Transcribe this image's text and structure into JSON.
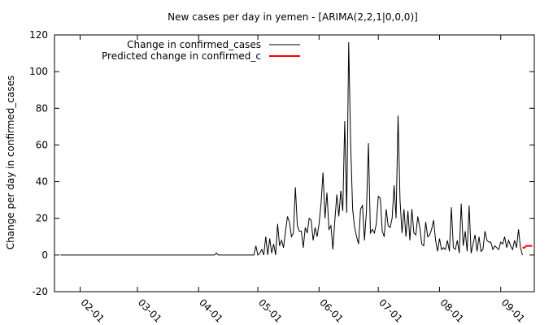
{
  "chart_data": {
    "type": "line",
    "title": "New cases per day in yemen -  [ARIMA(2,2,1|0,0,0)]",
    "xlabel": "",
    "ylabel": "Change per day in confirmed_cases",
    "xlim": [
      "2020-01-19",
      "2020-09-18"
    ],
    "ylim": [
      -20,
      120
    ],
    "yticks": [
      -20,
      0,
      20,
      40,
      60,
      80,
      100,
      120
    ],
    "xticks": [
      {
        "label": "02-01",
        "date": "2020-02-01"
      },
      {
        "label": "03-01",
        "date": "2020-03-01"
      },
      {
        "label": "04-01",
        "date": "2020-04-01"
      },
      {
        "label": "05-01",
        "date": "2020-05-01"
      },
      {
        "label": "06-01",
        "date": "2020-06-01"
      },
      {
        "label": "07-01",
        "date": "2020-07-01"
      },
      {
        "label": "08-01",
        "date": "2020-08-01"
      },
      {
        "label": "09-01",
        "date": "2020-09-01"
      }
    ],
    "grid": false,
    "legend_position": "top-left",
    "series": [
      {
        "name": "Change in confirmed_cases",
        "color": "#000000",
        "points": [
          [
            "2020-01-22",
            0
          ],
          [
            "2020-04-09",
            0
          ],
          [
            "2020-04-10",
            1
          ],
          [
            "2020-04-11",
            0
          ],
          [
            "2020-04-29",
            0
          ],
          [
            "2020-04-30",
            5
          ],
          [
            "2020-05-01",
            0
          ],
          [
            "2020-05-02",
            1
          ],
          [
            "2020-05-03",
            3
          ],
          [
            "2020-05-04",
            0
          ],
          [
            "2020-05-05",
            10
          ],
          [
            "2020-05-06",
            0
          ],
          [
            "2020-05-07",
            9
          ],
          [
            "2020-05-08",
            1
          ],
          [
            "2020-05-09",
            6
          ],
          [
            "2020-05-10",
            0
          ],
          [
            "2020-05-11",
            17
          ],
          [
            "2020-05-12",
            5
          ],
          [
            "2020-05-13",
            8
          ],
          [
            "2020-05-14",
            4
          ],
          [
            "2020-05-15",
            13
          ],
          [
            "2020-05-16",
            21
          ],
          [
            "2020-05-17",
            18
          ],
          [
            "2020-05-18",
            10
          ],
          [
            "2020-05-19",
            12
          ],
          [
            "2020-05-20",
            37
          ],
          [
            "2020-05-21",
            16
          ],
          [
            "2020-05-22",
            13
          ],
          [
            "2020-05-23",
            13
          ],
          [
            "2020-05-24",
            4
          ],
          [
            "2020-05-25",
            15
          ],
          [
            "2020-05-26",
            12
          ],
          [
            "2020-05-27",
            20
          ],
          [
            "2020-05-28",
            19
          ],
          [
            "2020-05-29",
            8
          ],
          [
            "2020-05-30",
            15
          ],
          [
            "2020-05-31",
            10
          ],
          [
            "2020-06-01",
            17
          ],
          [
            "2020-06-02",
            28
          ],
          [
            "2020-06-03",
            45
          ],
          [
            "2020-06-04",
            20
          ],
          [
            "2020-06-05",
            34
          ],
          [
            "2020-06-06",
            14
          ],
          [
            "2020-06-07",
            16
          ],
          [
            "2020-06-08",
            3
          ],
          [
            "2020-06-09",
            19
          ],
          [
            "2020-06-10",
            33
          ],
          [
            "2020-06-11",
            21
          ],
          [
            "2020-06-12",
            35
          ],
          [
            "2020-06-13",
            24
          ],
          [
            "2020-06-14",
            73
          ],
          [
            "2020-06-15",
            23
          ],
          [
            "2020-06-16",
            116
          ],
          [
            "2020-06-17",
            60
          ],
          [
            "2020-06-18",
            25
          ],
          [
            "2020-06-19",
            15
          ],
          [
            "2020-06-20",
            10
          ],
          [
            "2020-06-21",
            6
          ],
          [
            "2020-06-22",
            25
          ],
          [
            "2020-06-23",
            27
          ],
          [
            "2020-06-24",
            8
          ],
          [
            "2020-06-25",
            24
          ],
          [
            "2020-06-26",
            61
          ],
          [
            "2020-06-27",
            12
          ],
          [
            "2020-06-28",
            14
          ],
          [
            "2020-06-29",
            12
          ],
          [
            "2020-06-30",
            17
          ],
          [
            "2020-07-01",
            32
          ],
          [
            "2020-07-02",
            31
          ],
          [
            "2020-07-03",
            13
          ],
          [
            "2020-07-04",
            10
          ],
          [
            "2020-07-05",
            25
          ],
          [
            "2020-07-06",
            16
          ],
          [
            "2020-07-07",
            15
          ],
          [
            "2020-07-08",
            20
          ],
          [
            "2020-07-09",
            38
          ],
          [
            "2020-07-10",
            20
          ],
          [
            "2020-07-11",
            76
          ],
          [
            "2020-07-12",
            30
          ],
          [
            "2020-07-13",
            12
          ],
          [
            "2020-07-14",
            25
          ],
          [
            "2020-07-15",
            10
          ],
          [
            "2020-07-16",
            24
          ],
          [
            "2020-07-17",
            8
          ],
          [
            "2020-07-18",
            25
          ],
          [
            "2020-07-19",
            12
          ],
          [
            "2020-07-20",
            11
          ],
          [
            "2020-07-21",
            21
          ],
          [
            "2020-07-22",
            15
          ],
          [
            "2020-07-23",
            6
          ],
          [
            "2020-07-24",
            5
          ],
          [
            "2020-07-25",
            18
          ],
          [
            "2020-07-26",
            10
          ],
          [
            "2020-07-27",
            11
          ],
          [
            "2020-07-28",
            14
          ],
          [
            "2020-07-29",
            19
          ],
          [
            "2020-07-30",
            8
          ],
          [
            "2020-07-31",
            2
          ],
          [
            "2020-08-01",
            9
          ],
          [
            "2020-08-02",
            3
          ],
          [
            "2020-08-03",
            4
          ],
          [
            "2020-08-04",
            3
          ],
          [
            "2020-08-05",
            8
          ],
          [
            "2020-08-06",
            2
          ],
          [
            "2020-08-07",
            26
          ],
          [
            "2020-08-08",
            4
          ],
          [
            "2020-08-09",
            3
          ],
          [
            "2020-08-10",
            8
          ],
          [
            "2020-08-11",
            1
          ],
          [
            "2020-08-12",
            28
          ],
          [
            "2020-08-13",
            5
          ],
          [
            "2020-08-14",
            13
          ],
          [
            "2020-08-15",
            2
          ],
          [
            "2020-08-16",
            27
          ],
          [
            "2020-08-17",
            1
          ],
          [
            "2020-08-18",
            6
          ],
          [
            "2020-08-19",
            11
          ],
          [
            "2020-08-20",
            2
          ],
          [
            "2020-08-21",
            10
          ],
          [
            "2020-08-22",
            2
          ],
          [
            "2020-08-23",
            3
          ],
          [
            "2020-08-24",
            13
          ],
          [
            "2020-08-25",
            8
          ],
          [
            "2020-08-26",
            7
          ],
          [
            "2020-08-27",
            7
          ],
          [
            "2020-08-28",
            3
          ],
          [
            "2020-08-29",
            5
          ],
          [
            "2020-08-30",
            4
          ],
          [
            "2020-08-31",
            3
          ],
          [
            "2020-09-01",
            7
          ],
          [
            "2020-09-02",
            6
          ],
          [
            "2020-09-03",
            10
          ],
          [
            "2020-09-04",
            4
          ],
          [
            "2020-09-05",
            8
          ],
          [
            "2020-09-06",
            5
          ],
          [
            "2020-09-07",
            3
          ],
          [
            "2020-09-08",
            8
          ],
          [
            "2020-09-09",
            4
          ],
          [
            "2020-09-10",
            14
          ],
          [
            "2020-09-11",
            4
          ],
          [
            "2020-09-12",
            0
          ]
        ]
      },
      {
        "name": "Predicted change in confirmed_c",
        "color": "#ff0000",
        "points": [
          [
            "2020-09-12",
            4
          ],
          [
            "2020-09-13",
            4
          ],
          [
            "2020-09-14",
            5
          ],
          [
            "2020-09-15",
            5
          ],
          [
            "2020-09-16",
            5
          ],
          [
            "2020-09-17",
            5
          ]
        ]
      }
    ]
  }
}
